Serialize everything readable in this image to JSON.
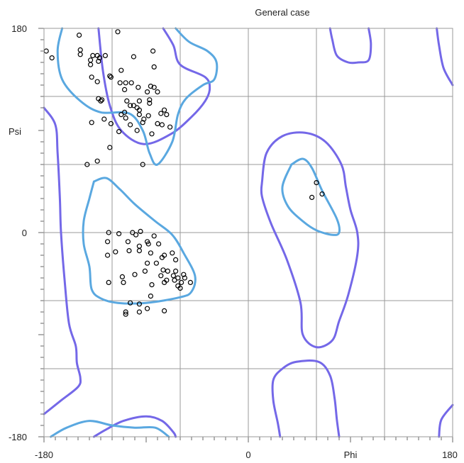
{
  "chart_data": {
    "type": "scatter",
    "title": "General case",
    "xlabel": "Phi",
    "ylabel": "Psi",
    "xlim": [
      -180,
      180
    ],
    "ylim": [
      -180,
      180
    ],
    "xticks": [
      "-180",
      "0",
      "180"
    ],
    "yticks": [
      "180",
      "0",
      "-180"
    ],
    "grid": true,
    "contour_colors": {
      "allowed": "#7468e8",
      "favoured": "#5aa8e0"
    },
    "series": [
      {
        "values": [
          [
            -149,
            174
          ],
          [
            -115,
            177
          ],
          [
            -178,
            160
          ],
          [
            -173,
            154
          ],
          [
            -148,
            161
          ],
          [
            -148,
            157
          ],
          [
            -137,
            156
          ],
          [
            -133,
            156
          ],
          [
            -131,
            154
          ],
          [
            -139,
            152
          ],
          [
            -132,
            151
          ],
          [
            -126,
            156
          ],
          [
            -84,
            160
          ],
          [
            -101,
            155
          ],
          [
            -139,
            148
          ],
          [
            -83,
            146
          ],
          [
            -112,
            143
          ],
          [
            -138,
            137
          ],
          [
            -122,
            138
          ],
          [
            -121,
            137
          ],
          [
            -133,
            133
          ],
          [
            -113,
            132
          ],
          [
            -108,
            132
          ],
          [
            -103,
            132
          ],
          [
            -109,
            126
          ],
          [
            -86,
            129
          ],
          [
            -97,
            128
          ],
          [
            -89,
            124
          ],
          [
            -80,
            124
          ],
          [
            -87,
            117
          ],
          [
            -107,
            116
          ],
          [
            -101,
            112
          ],
          [
            -96,
            108
          ],
          [
            -104,
            112
          ],
          [
            -96,
            116
          ],
          [
            -132,
            118
          ],
          [
            -129,
            117
          ],
          [
            -130,
            116
          ],
          [
            -87,
            114
          ],
          [
            -109,
            106
          ],
          [
            -112,
            104
          ],
          [
            -96,
            104
          ],
          [
            -88,
            103
          ],
          [
            -127,
            100
          ],
          [
            -121,
            96
          ],
          [
            -93,
            97
          ],
          [
            -76,
            95
          ],
          [
            -77,
            105
          ],
          [
            -74,
            108
          ],
          [
            -72,
            104
          ],
          [
            -85,
            87
          ],
          [
            -114,
            89
          ],
          [
            -98,
            90
          ],
          [
            -122,
            75
          ],
          [
            -138,
            97
          ],
          [
            -104,
            95
          ],
          [
            -98,
            110
          ],
          [
            -92,
            100
          ],
          [
            -69,
            93
          ],
          [
            -93,
            60
          ],
          [
            -133,
            63
          ],
          [
            -142,
            60
          ],
          [
            -108,
            101
          ],
          [
            -83,
            128
          ],
          [
            -80,
            96
          ]
        ]
      },
      {
        "values": [
          [
            -123,
            0
          ],
          [
            -102,
            0
          ],
          [
            -95,
            1
          ],
          [
            -114,
            -1
          ],
          [
            -99,
            -2
          ],
          [
            -83,
            -3
          ],
          [
            -124,
            -8
          ],
          [
            -106,
            -8
          ],
          [
            -89,
            -8
          ],
          [
            -88,
            -10
          ],
          [
            -79,
            -10
          ],
          [
            -96,
            -12
          ],
          [
            -105,
            -16
          ],
          [
            -117,
            -17
          ],
          [
            -124,
            -20
          ],
          [
            -96,
            -16
          ],
          [
            -86,
            -18
          ],
          [
            -67,
            -18
          ],
          [
            -74,
            -20
          ],
          [
            -76,
            -22
          ],
          [
            -64,
            -24
          ],
          [
            -81,
            -27
          ],
          [
            -89,
            -27
          ],
          [
            -91,
            -34
          ],
          [
            -100,
            -37
          ],
          [
            -111,
            -39
          ],
          [
            -110,
            -44
          ],
          [
            -75,
            -33
          ],
          [
            -71,
            -34
          ],
          [
            -77,
            -38
          ],
          [
            -64,
            -34
          ],
          [
            -72,
            -42
          ],
          [
            -66,
            -38
          ],
          [
            -65,
            -42
          ],
          [
            -62,
            -40
          ],
          [
            -59,
            -44
          ],
          [
            -57,
            -37
          ],
          [
            -56,
            -40
          ],
          [
            -51,
            -44
          ],
          [
            -62,
            -47
          ],
          [
            -74,
            -44
          ],
          [
            -85,
            -46
          ],
          [
            -123,
            -44
          ],
          [
            -60,
            -49
          ],
          [
            -86,
            -56
          ],
          [
            -96,
            -63
          ],
          [
            -89,
            -67
          ],
          [
            -74,
            -69
          ],
          [
            -96,
            -70
          ],
          [
            -108,
            -70
          ],
          [
            -108,
            -72
          ],
          [
            -104,
            -62
          ]
        ]
      },
      {
        "values": [
          [
            60,
            44
          ],
          [
            65,
            34
          ],
          [
            56,
            31
          ]
        ]
      }
    ],
    "contours": {
      "allowed": [
        [
          [
            -180,
            110
          ],
          [
            -170,
            95
          ],
          [
            -168,
            70
          ],
          [
            -166,
            30
          ],
          [
            -165,
            0
          ],
          [
            -162,
            -40
          ],
          [
            -158,
            -80
          ],
          [
            -152,
            -100
          ],
          [
            -151,
            -115
          ],
          [
            -148,
            -128
          ],
          [
            -150,
            -136
          ],
          [
            -165,
            -148
          ],
          [
            -180,
            -160
          ]
        ],
        [
          [
            -132,
            180
          ],
          [
            -128,
            142
          ],
          [
            -122,
            112
          ],
          [
            -112,
            90
          ],
          [
            -92,
            78
          ],
          [
            -68,
            87
          ],
          [
            -50,
            102
          ],
          [
            -38,
            116
          ],
          [
            -34,
            127
          ],
          [
            -38,
            137
          ],
          [
            -60,
            148
          ],
          [
            -66,
            165
          ],
          [
            -75,
            180
          ]
        ],
        [
          [
            -136,
            -180
          ],
          [
            -126,
            -174
          ],
          [
            -110,
            -166
          ],
          [
            -90,
            -162
          ],
          [
            -76,
            -166
          ],
          [
            -66,
            -176
          ],
          [
            -64,
            -180
          ]
        ],
        [
          [
            12,
            44
          ],
          [
            16,
            70
          ],
          [
            30,
            85
          ],
          [
            50,
            88
          ],
          [
            68,
            80
          ],
          [
            82,
            60
          ],
          [
            86,
            40
          ],
          [
            90,
            20
          ],
          [
            96,
            0
          ],
          [
            96,
            -20
          ],
          [
            88,
            -55
          ],
          [
            80,
            -78
          ],
          [
            74,
            -95
          ],
          [
            60,
            -101
          ],
          [
            48,
            -90
          ],
          [
            46,
            -62
          ],
          [
            34,
            -24
          ],
          [
            20,
            8
          ],
          [
            12,
            32
          ],
          [
            12,
            44
          ]
        ],
        [
          [
            28,
            -180
          ],
          [
            26,
            -168
          ],
          [
            22,
            -148
          ],
          [
            22,
            -130
          ],
          [
            30,
            -120
          ],
          [
            42,
            -114
          ],
          [
            62,
            -114
          ],
          [
            72,
            -126
          ],
          [
            76,
            -146
          ],
          [
            78,
            -165
          ],
          [
            80,
            -180
          ]
        ],
        [
          [
            106,
            180
          ],
          [
            108,
            166
          ],
          [
            106,
            152
          ],
          [
            97,
            150
          ],
          [
            88,
            150
          ],
          [
            78,
            156
          ],
          [
            74,
            170
          ],
          [
            72,
            180
          ]
        ],
        [
          [
            166,
            180
          ],
          [
            168,
            165
          ],
          [
            172,
            145
          ],
          [
            180,
            130
          ]
        ],
        [
          [
            168,
            -180
          ],
          [
            170,
            -165
          ],
          [
            180,
            -152
          ]
        ]
      ],
      "favoured": [
        [
          [
            -164,
            180
          ],
          [
            -168,
            160
          ],
          [
            -164,
            135
          ],
          [
            -148,
            116
          ],
          [
            -130,
            106
          ],
          [
            -105,
            105
          ],
          [
            -93,
            90
          ],
          [
            -87,
            70
          ],
          [
            -80,
            60
          ],
          [
            -67,
            80
          ],
          [
            -62,
            104
          ],
          [
            -55,
            118
          ],
          [
            -40,
            130
          ],
          [
            -30,
            135
          ],
          [
            -28,
            150
          ],
          [
            -36,
            160
          ],
          [
            -52,
            168
          ],
          [
            -64,
            180
          ]
        ],
        [
          [
            -136,
            45
          ],
          [
            -140,
            30
          ],
          [
            -145,
            10
          ],
          [
            -145,
            -10
          ],
          [
            -140,
            -30
          ],
          [
            -138,
            -50
          ],
          [
            -130,
            -58
          ],
          [
            -115,
            -62
          ],
          [
            -90,
            -62
          ],
          [
            -60,
            -57
          ],
          [
            -50,
            -52
          ],
          [
            -47,
            -38
          ],
          [
            -57,
            -18
          ],
          [
            -67,
            -2
          ],
          [
            -82,
            10
          ],
          [
            -100,
            25
          ],
          [
            -113,
            38
          ],
          [
            -125,
            48
          ],
          [
            -136,
            45
          ]
        ],
        [
          [
            38,
            60
          ],
          [
            48,
            65
          ],
          [
            56,
            57
          ],
          [
            65,
            37
          ],
          [
            78,
            12
          ],
          [
            80,
            0
          ],
          [
            74,
            -2
          ],
          [
            60,
            2
          ],
          [
            48,
            10
          ],
          [
            35,
            23
          ],
          [
            30,
            40
          ],
          [
            38,
            60
          ]
        ],
        [
          [
            -174,
            -180
          ],
          [
            -160,
            -172
          ],
          [
            -140,
            -166
          ],
          [
            -120,
            -170
          ],
          [
            -100,
            -172
          ],
          [
            -82,
            -172
          ],
          [
            -70,
            -180
          ]
        ]
      ]
    }
  }
}
